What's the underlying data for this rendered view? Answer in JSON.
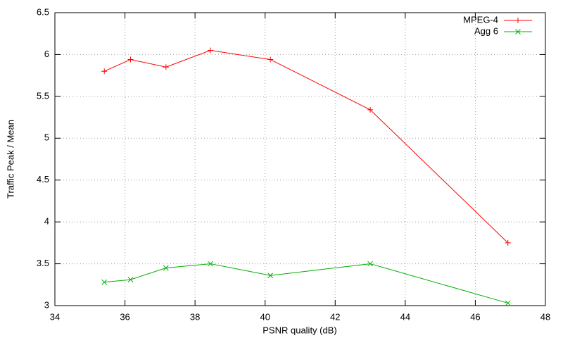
{
  "chart_data": {
    "type": "line",
    "xlabel": "PSNR quality (dB)",
    "ylabel": "Traffic Peak / Mean",
    "xlim": [
      34,
      48
    ],
    "xticks": [
      34,
      36,
      38,
      40,
      42,
      44,
      46,
      48
    ],
    "ylim": [
      3,
      6.5
    ],
    "yticks": [
      3,
      3.5,
      4,
      4.5,
      5,
      5.5,
      6,
      6.5
    ],
    "grid": true,
    "legend": "top-right",
    "series": [
      {
        "name": "MPEG-4",
        "color": "#ff0000",
        "marker": "+",
        "x": [
          35.41,
          36.16,
          37.17,
          38.44,
          40.15,
          43.0,
          46.93
        ],
        "values": [
          5.8,
          5.94,
          5.85,
          6.05,
          5.94,
          5.34,
          3.75
        ]
      },
      {
        "name": "Agg 6",
        "color": "#00b000",
        "marker": "x",
        "x": [
          35.41,
          36.16,
          37.17,
          38.44,
          40.15,
          43.0,
          46.93
        ],
        "values": [
          3.28,
          3.31,
          3.45,
          3.5,
          3.36,
          3.5,
          3.03
        ]
      }
    ]
  }
}
